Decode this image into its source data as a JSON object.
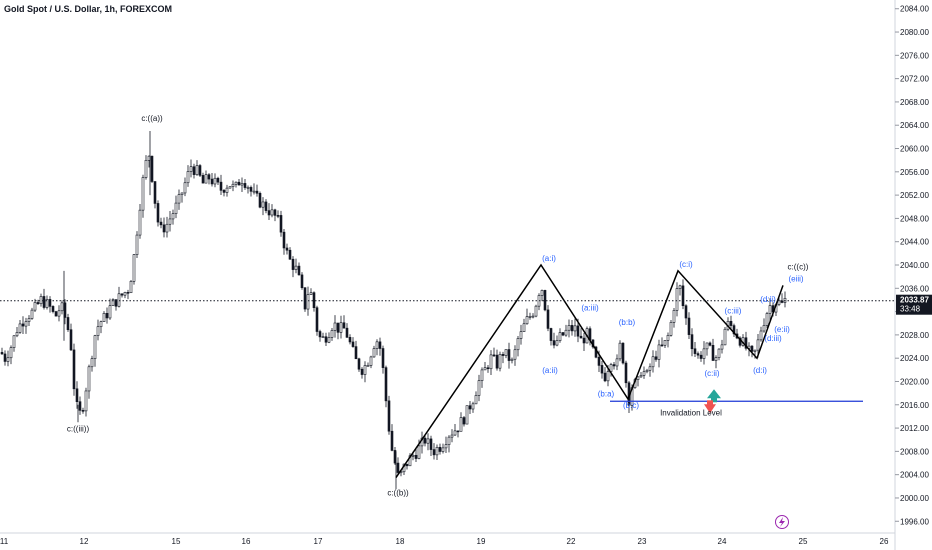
{
  "title": "Gold Spot / U.S. Dollar, 1h, FOREXCOM",
  "price_tag": {
    "value": "2033.87",
    "time": "33:48"
  },
  "invalidation_label": "Invalidation Level",
  "colors": {
    "up": "#131722",
    "down": "#131722",
    "wave_line": "#000000",
    "blue_label": "#2962ff",
    "invalidation": "#1e3ad6",
    "arrow_up": "#26a69a",
    "arrow_down": "#ef5350"
  },
  "chart_data": {
    "type": "candlestick",
    "x_ticks": [
      "11",
      "12",
      "15",
      "16",
      "17",
      "18",
      "19",
      "22",
      "23",
      "24",
      "25",
      "26"
    ],
    "y_ticks": [
      1996,
      2000,
      2004,
      2008,
      2012,
      2016,
      2020,
      2024,
      2028,
      2032,
      2036,
      2040,
      2044,
      2048,
      2052,
      2056,
      2060,
      2064,
      2068,
      2072,
      2076,
      2080,
      2084
    ],
    "y_tick_labels": [
      "1996.00",
      "2000.00",
      "2004.00",
      "2008.00",
      "2012.00",
      "2016.00",
      "2020.00",
      "2024.00",
      "2028.00",
      "2032.00",
      "2036.00",
      "2040.00",
      "2044.00",
      "2048.00",
      "2052.00",
      "2056.00",
      "2060.00",
      "2064.00",
      "2068.00",
      "2072.00",
      "2076.00",
      "2080.00",
      "2084.00"
    ],
    "ylim": [
      1994.5,
      2085.5
    ],
    "current_price": 2033.87,
    "invalidation_price": 2016.6,
    "price_path": [
      [
        0,
        2025
      ],
      [
        4,
        2024
      ],
      [
        10,
        2026
      ],
      [
        16,
        2029
      ],
      [
        24,
        2031
      ],
      [
        32,
        2032
      ],
      [
        40,
        2034
      ],
      [
        48,
        2033
      ],
      [
        54,
        2031
      ],
      [
        60,
        2033
      ],
      [
        66,
        2030
      ],
      [
        70,
        2026
      ],
      [
        74,
        2017
      ],
      [
        78,
        2014
      ],
      [
        82,
        2016
      ],
      [
        86,
        2020
      ],
      [
        90,
        2024
      ],
      [
        94,
        2028
      ],
      [
        98,
        2030
      ],
      [
        104,
        2031
      ],
      [
        110,
        2033
      ],
      [
        116,
        2034
      ],
      [
        122,
        2035
      ],
      [
        128,
        2036
      ],
      [
        132,
        2040
      ],
      [
        136,
        2046
      ],
      [
        140,
        2052
      ],
      [
        144,
        2057
      ],
      [
        148,
        2059
      ],
      [
        152,
        2054
      ],
      [
        156,
        2048
      ],
      [
        160,
        2046
      ],
      [
        166,
        2047
      ],
      [
        172,
        2049
      ],
      [
        178,
        2051
      ],
      [
        184,
        2054
      ],
      [
        190,
        2057
      ],
      [
        196,
        2056
      ],
      [
        202,
        2054
      ],
      [
        208,
        2055
      ],
      [
        214,
        2054
      ],
      [
        220,
        2053
      ],
      [
        228,
        2054
      ],
      [
        234,
        2053
      ],
      [
        240,
        2055
      ],
      [
        246,
        2054
      ],
      [
        252,
        2052
      ],
      [
        258,
        2051
      ],
      [
        264,
        2050
      ],
      [
        270,
        2049
      ],
      [
        276,
        2048
      ],
      [
        280,
        2046
      ],
      [
        284,
        2043
      ],
      [
        288,
        2041
      ],
      [
        292,
        2040
      ],
      [
        296,
        2039
      ],
      [
        300,
        2036
      ],
      [
        304,
        2033
      ],
      [
        308,
        2036
      ],
      [
        312,
        2034
      ],
      [
        316,
        2029
      ],
      [
        320,
        2027
      ],
      [
        326,
        2028
      ],
      [
        332,
        2030
      ],
      [
        338,
        2029
      ],
      [
        344,
        2029
      ],
      [
        350,
        2026
      ],
      [
        356,
        2023
      ],
      [
        362,
        2022
      ],
      [
        368,
        2024
      ],
      [
        374,
        2027
      ],
      [
        378,
        2027
      ],
      [
        382,
        2022
      ],
      [
        386,
        2015
      ],
      [
        390,
        2009
      ],
      [
        394,
        2006
      ],
      [
        398,
        2003
      ],
      [
        402,
        2005
      ],
      [
        406,
        2006
      ],
      [
        410,
        2007
      ],
      [
        416,
        2008
      ],
      [
        424,
        2010
      ],
      [
        432,
        2008
      ],
      [
        440,
        2009
      ],
      [
        448,
        2011
      ],
      [
        456,
        2012
      ],
      [
        464,
        2014
      ],
      [
        472,
        2017
      ],
      [
        478,
        2020
      ],
      [
        484,
        2022
      ],
      [
        490,
        2024
      ],
      [
        496,
        2023
      ],
      [
        502,
        2025
      ],
      [
        508,
        2024
      ],
      [
        512,
        2023
      ],
      [
        516,
        2027
      ],
      [
        520,
        2028
      ],
      [
        524,
        2030
      ],
      [
        528,
        2031
      ],
      [
        532,
        2032
      ],
      [
        536,
        2034
      ],
      [
        540,
        2037
      ],
      [
        544,
        2033
      ],
      [
        548,
        2029
      ],
      [
        552,
        2025
      ],
      [
        556,
        2027
      ],
      [
        562,
        2028
      ],
      [
        568,
        2029
      ],
      [
        574,
        2029
      ],
      [
        580,
        2027
      ],
      [
        586,
        2028
      ],
      [
        592,
        2025
      ],
      [
        598,
        2022
      ],
      [
        604,
        2021
      ],
      [
        610,
        2024
      ],
      [
        616,
        2023
      ],
      [
        620,
        2027
      ],
      [
        624,
        2021
      ],
      [
        628,
        2017
      ],
      [
        632,
        2020
      ],
      [
        636,
        2019
      ],
      [
        640,
        2022
      ],
      [
        646,
        2021
      ],
      [
        650,
        2023
      ],
      [
        656,
        2025
      ],
      [
        662,
        2026
      ],
      [
        666,
        2027
      ],
      [
        670,
        2030
      ],
      [
        674,
        2034
      ],
      [
        678,
        2037
      ],
      [
        682,
        2033
      ],
      [
        686,
        2030
      ],
      [
        690,
        2027
      ],
      [
        694,
        2025
      ],
      [
        698,
        2024
      ],
      [
        704,
        2026
      ],
      [
        710,
        2025
      ],
      [
        716,
        2024
      ],
      [
        720,
        2026
      ],
      [
        724,
        2029
      ],
      [
        728,
        2030
      ],
      [
        732,
        2029
      ],
      [
        736,
        2028
      ],
      [
        740,
        2027
      ],
      [
        744,
        2026
      ],
      [
        748,
        2025
      ],
      [
        752,
        2024
      ],
      [
        756,
        2026
      ],
      [
        760,
        2029
      ],
      [
        764,
        2031
      ],
      [
        768,
        2033
      ],
      [
        772,
        2033
      ],
      [
        776,
        2034
      ],
      [
        780,
        2033
      ],
      [
        784,
        2034
      ]
    ],
    "wave_path": [
      [
        396,
        2003.5
      ],
      [
        541,
        2040
      ],
      [
        628,
        2017
      ],
      [
        678,
        2039
      ],
      [
        757,
        2024
      ],
      [
        783,
        2036.5
      ]
    ],
    "annotations": [
      {
        "text": "c:((a))",
        "x": 152,
        "y": 2064,
        "color": "black",
        "anchor": "middle",
        "above": true
      },
      {
        "text": "c:((iii))",
        "x": 78,
        "y": 2013,
        "color": "black",
        "anchor": "middle",
        "above": false
      },
      {
        "text": "c:((b))",
        "x": 398,
        "y": 2002,
        "color": "black",
        "anchor": "middle",
        "above": false
      },
      {
        "text": "(a:i)",
        "x": 549,
        "y": 2040,
        "color": "blue",
        "anchor": "middle",
        "above": true
      },
      {
        "text": "(a:iii)",
        "x": 590,
        "y": 2031.5,
        "color": "blue",
        "anchor": "middle",
        "above": true
      },
      {
        "text": "(a:ii)",
        "x": 550,
        "y": 2023,
        "color": "blue",
        "anchor": "middle",
        "above": false
      },
      {
        "text": "(b:b)",
        "x": 627,
        "y": 2029,
        "color": "blue",
        "anchor": "middle",
        "above": true
      },
      {
        "text": "(b:a)",
        "x": 606,
        "y": 2019,
        "color": "blue",
        "anchor": "middle",
        "above": false
      },
      {
        "text": "(b:c)",
        "x": 631,
        "y": 2017,
        "color": "blue",
        "anchor": "middle",
        "above": false
      },
      {
        "text": "(c:i)",
        "x": 686,
        "y": 2039,
        "color": "blue",
        "anchor": "middle",
        "above": true
      },
      {
        "text": "(c:iii)",
        "x": 733,
        "y": 2031,
        "color": "blue",
        "anchor": "middle",
        "above": true
      },
      {
        "text": "(c:ii)",
        "x": 712,
        "y": 2022.5,
        "color": "blue",
        "anchor": "middle",
        "above": false
      },
      {
        "text": "(d:i)",
        "x": 760,
        "y": 2023,
        "color": "blue",
        "anchor": "middle",
        "above": false
      },
      {
        "text": "(d:iii)",
        "x": 773,
        "y": 2028.5,
        "color": "blue",
        "anchor": "middle",
        "above": false
      },
      {
        "text": "(e:ii)",
        "x": 782,
        "y": 2030,
        "color": "blue",
        "anchor": "middle",
        "above": false
      },
      {
        "text": "(d:ii)",
        "x": 768,
        "y": 2033,
        "color": "blue",
        "anchor": "middle",
        "above": true
      },
      {
        "text": "(eiii)",
        "x": 796,
        "y": 2036.5,
        "color": "blue",
        "anchor": "middle",
        "above": true
      },
      {
        "text": "c:((c))",
        "x": 798,
        "y": 2038.5,
        "color": "black",
        "anchor": "middle",
        "above": true
      }
    ]
  }
}
